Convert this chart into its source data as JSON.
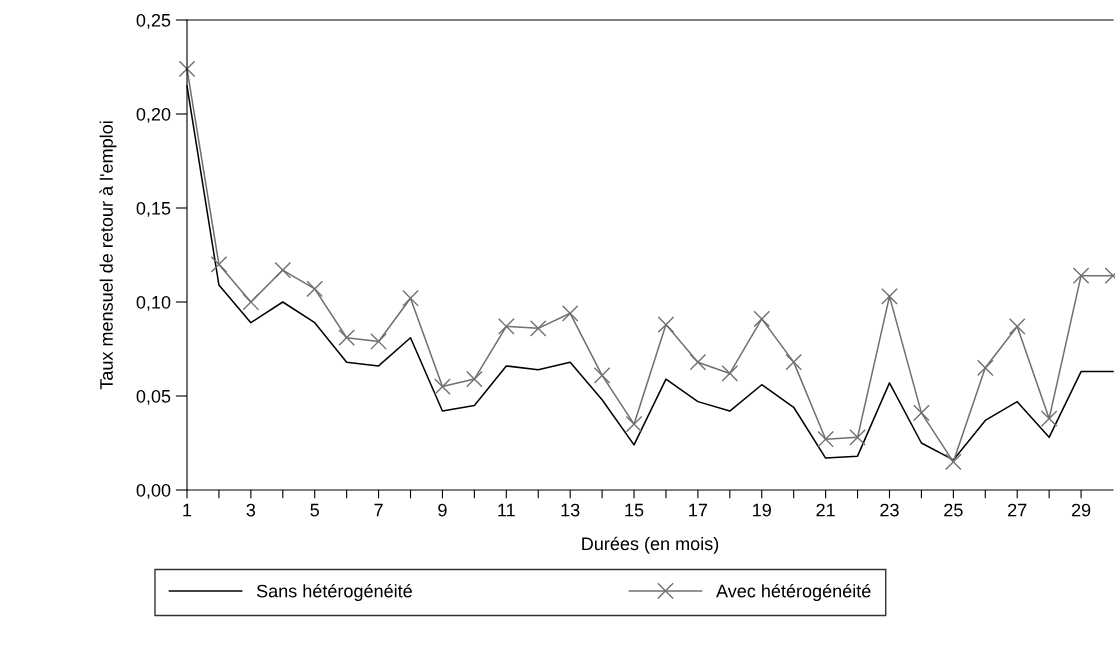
{
  "chart_data": {
    "type": "line",
    "xlabel": "Durées (en mois)",
    "ylabel": "Taux mensuel de retour à l'emploi",
    "x": [
      1,
      2,
      3,
      4,
      5,
      6,
      7,
      8,
      9,
      10,
      11,
      12,
      13,
      14,
      15,
      16,
      17,
      18,
      19,
      20,
      21,
      22,
      23,
      24,
      25,
      26,
      27,
      28,
      29,
      30
    ],
    "series": [
      {
        "name": "Sans hétérogénéité",
        "color": "#000000",
        "marker": "none",
        "values": [
          0.215,
          0.109,
          0.089,
          0.1,
          0.089,
          0.068,
          0.066,
          0.081,
          0.042,
          0.045,
          0.066,
          0.064,
          0.068,
          0.048,
          0.024,
          0.059,
          0.047,
          0.042,
          0.056,
          0.044,
          0.017,
          0.018,
          0.057,
          0.025,
          0.016,
          0.037,
          0.047,
          0.028,
          0.063,
          0.063
        ]
      },
      {
        "name": "Avec hétérogénéité",
        "color": "#707070",
        "marker": "cross",
        "values": [
          0.224,
          0.12,
          0.1,
          0.117,
          0.107,
          0.081,
          0.079,
          0.102,
          0.055,
          0.059,
          0.087,
          0.086,
          0.094,
          0.061,
          0.035,
          0.088,
          0.068,
          0.062,
          0.091,
          0.068,
          0.027,
          0.028,
          0.103,
          0.041,
          0.015,
          0.065,
          0.087,
          0.038,
          0.114,
          0.114
        ]
      }
    ],
    "xlim": [
      1,
      30
    ],
    "xticks": [
      1,
      {
        "value": 2,
        "label": null
      },
      3,
      {
        "value": 4,
        "label": null
      },
      5,
      {
        "value": 6,
        "label": null
      },
      7,
      {
        "value": 8,
        "label": null
      },
      9,
      {
        "value": 10,
        "label": null
      },
      11,
      {
        "value": 12,
        "label": null
      },
      13,
      {
        "value": 14,
        "label": null
      },
      15,
      {
        "value": 16,
        "label": null
      },
      17,
      {
        "value": 18,
        "label": null
      },
      19,
      {
        "value": 20,
        "label": null
      },
      21,
      {
        "value": 22,
        "label": null
      },
      23,
      {
        "value": 24,
        "label": null
      },
      25,
      {
        "value": 26,
        "label": null
      },
      27,
      {
        "value": 28,
        "label": null
      },
      29
    ],
    "ylim": [
      0,
      0.25
    ],
    "yticks": [
      {
        "value": 0,
        "label": "0,00"
      },
      {
        "value": 0.05,
        "label": "0,05"
      },
      {
        "value": 0.1,
        "label": "0,10"
      },
      {
        "value": 0.15,
        "label": "0,15"
      },
      {
        "value": 0.2,
        "label": "0,20"
      },
      {
        "value": 0.25,
        "label": "0,25"
      }
    ],
    "grid": false,
    "legend": "bottom",
    "line_style": "solid"
  }
}
